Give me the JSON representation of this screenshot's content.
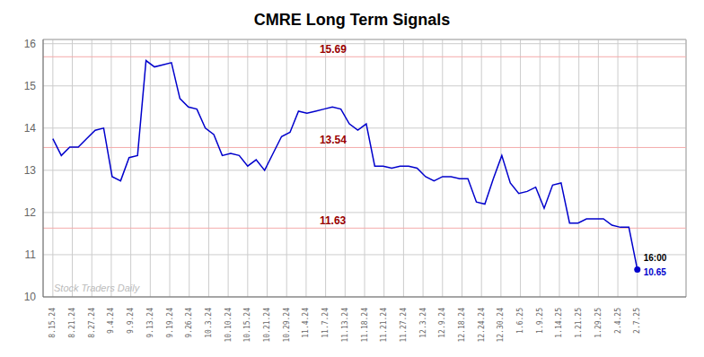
{
  "chart_data": {
    "type": "line",
    "title": "CMRE Long Term Signals",
    "watermark": "Stock Traders Daily",
    "xlim": [
      -0.5,
      32.5
    ],
    "xticks": [
      {
        "value": 0,
        "label": "8.15.24"
      },
      {
        "value": 1,
        "label": "8.21.24"
      },
      {
        "value": 2,
        "label": "8.27.24"
      },
      {
        "value": 3,
        "label": "9.4.24"
      },
      {
        "value": 4,
        "label": "9.9.24"
      },
      {
        "value": 5,
        "label": "9.13.24"
      },
      {
        "value": 6,
        "label": "9.19.24"
      },
      {
        "value": 7,
        "label": "9.26.24"
      },
      {
        "value": 8,
        "label": "10.3.24"
      },
      {
        "value": 9,
        "label": "10.10.24"
      },
      {
        "value": 10,
        "label": "10.15.24"
      },
      {
        "value": 11,
        "label": "10.21.24"
      },
      {
        "value": 12,
        "label": "10.29.24"
      },
      {
        "value": 13,
        "label": "11.4.24"
      },
      {
        "value": 14,
        "label": "11.7.24"
      },
      {
        "value": 15,
        "label": "11.13.24"
      },
      {
        "value": 16,
        "label": "11.18.24"
      },
      {
        "value": 17,
        "label": "11.21.24"
      },
      {
        "value": 18,
        "label": "11.27.24"
      },
      {
        "value": 19,
        "label": "12.3.24"
      },
      {
        "value": 20,
        "label": "12.9.24"
      },
      {
        "value": 21,
        "label": "12.18.24"
      },
      {
        "value": 22,
        "label": "12.24.24"
      },
      {
        "value": 23,
        "label": "12.30.24"
      },
      {
        "value": 24,
        "label": "1.6.25"
      },
      {
        "value": 25,
        "label": "1.9.25"
      },
      {
        "value": 26,
        "label": "1.14.25"
      },
      {
        "value": 27,
        "label": "1.21.25"
      },
      {
        "value": 28,
        "label": "1.29.25"
      },
      {
        "value": 29,
        "label": "2.4.25"
      },
      {
        "value": 30,
        "label": "2.7.25"
      }
    ],
    "ylim": [
      10,
      16.1
    ],
    "yticks": [
      10,
      11,
      12,
      13,
      14,
      15,
      16
    ],
    "grid": true,
    "series": [
      {
        "color": "#0000cc",
        "marker": "last",
        "values": [
          13.75,
          13.35,
          13.55,
          13.55,
          13.75,
          13.95,
          14.0,
          12.85,
          12.75,
          13.3,
          13.35,
          15.6,
          15.45,
          15.5,
          15.55,
          14.7,
          14.5,
          14.45,
          14.0,
          13.85,
          13.35,
          13.4,
          13.35,
          13.1,
          13.25,
          13.0,
          13.4,
          13.8,
          13.9,
          14.4,
          14.35,
          14.4,
          14.45,
          14.5,
          14.45,
          14.1,
          13.95,
          14.1,
          13.1,
          13.1,
          13.05,
          13.1,
          13.1,
          13.05,
          12.85,
          12.75,
          12.85,
          12.85,
          12.8,
          12.8,
          12.25,
          12.2,
          12.8,
          13.35,
          12.7,
          12.45,
          12.5,
          12.6,
          12.1,
          12.65,
          12.7,
          11.75,
          11.75,
          11.85,
          11.85,
          11.85,
          11.7,
          11.65,
          11.65,
          10.65
        ]
      }
    ],
    "reference_lines": [
      {
        "y": 15.69,
        "label": "15.69",
        "color": "#f4aaaa",
        "label_color": "#990000"
      },
      {
        "y": 13.54,
        "label": "13.54",
        "color": "#f4aaaa",
        "label_color": "#990000"
      },
      {
        "y": 11.63,
        "label": "11.63",
        "color": "#f4aaaa",
        "label_color": "#990000"
      }
    ],
    "last_point_labels": [
      {
        "text": "16:00",
        "color": "#000000"
      },
      {
        "text": "10.65",
        "color": "#0000cc"
      }
    ]
  }
}
